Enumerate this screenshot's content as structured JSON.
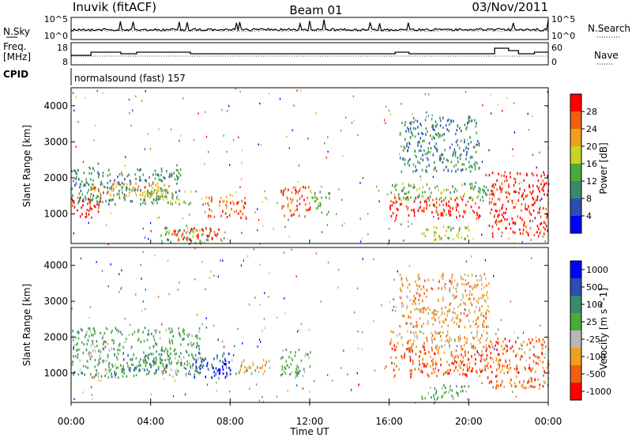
{
  "header": {
    "station": "Inuvik (fitACF)",
    "beam": "Beam 01",
    "date": "03/Nov/2011"
  },
  "noise_panel": {
    "left_label": "N.Sky",
    "right_label": "N.Search",
    "left_ticks": [
      "10^5",
      "10^0"
    ],
    "right_ticks": [
      "10^5",
      "10^0"
    ]
  },
  "freq_panel": {
    "left_label_1": "Freq.",
    "left_label_2": "[MHz]",
    "left_ticks": [
      "18",
      "8"
    ],
    "right_label": "Nave",
    "right_ticks": [
      "60",
      "0"
    ]
  },
  "cpid": {
    "label": "CPID",
    "value": "normalsound (fast) 157"
  },
  "colors": {
    "power_scale": [
      "#0000ff",
      "#2a4fb3",
      "#3a8a6a",
      "#4aab3a",
      "#c8d42a",
      "#f0a020",
      "#f06010",
      "#ff0000"
    ],
    "velocity_scale": [
      "#0000ff",
      "#2a4fb3",
      "#3a8a6a",
      "#4aab3a",
      "#b8b8b8",
      "#f0a020",
      "#f06010",
      "#ff0000"
    ]
  },
  "chart_data": [
    {
      "type": "heatmap",
      "panel": "power",
      "ylabel": "Slant Range [km]",
      "yticks": [
        "1000",
        "2000",
        "3000",
        "4000"
      ],
      "ylim": [
        180,
        4500
      ],
      "xlim": [
        0,
        24
      ],
      "colorbar_label": "Power [dB]",
      "colorbar_ticks": [
        "4",
        "8",
        "12",
        "16",
        "20",
        "24",
        "28"
      ],
      "regions": [
        {
          "t0": 0.0,
          "t1": 1.5,
          "r0": 900,
          "r1": 1500,
          "level": 7
        },
        {
          "t0": 0.0,
          "t1": 5.5,
          "r0": 1300,
          "r1": 2300,
          "level": 2
        },
        {
          "t0": 1.0,
          "t1": 5.0,
          "r0": 1500,
          "r1": 1900,
          "level": 5
        },
        {
          "t0": 3.5,
          "t1": 6.0,
          "r0": 1300,
          "r1": 1700,
          "level": 4
        },
        {
          "t0": 4.5,
          "t1": 7.0,
          "r0": 200,
          "r1": 700,
          "level": 3
        },
        {
          "t0": 5.0,
          "t1": 7.5,
          "r0": 300,
          "r1": 650,
          "level": 7
        },
        {
          "t0": 6.7,
          "t1": 8.8,
          "r0": 900,
          "r1": 1500,
          "level": 6
        },
        {
          "t0": 10.5,
          "t1": 12.0,
          "r0": 900,
          "r1": 1800,
          "level": 6
        },
        {
          "t0": 12.0,
          "t1": 13.0,
          "r0": 1000,
          "r1": 1700,
          "level": 3
        },
        {
          "t0": 16.0,
          "t1": 20.5,
          "r0": 900,
          "r1": 1500,
          "level": 7
        },
        {
          "t0": 16.0,
          "t1": 21.0,
          "r0": 1400,
          "r1": 1900,
          "level": 3
        },
        {
          "t0": 17.5,
          "t1": 20.0,
          "r0": 300,
          "r1": 700,
          "level": 4
        },
        {
          "t0": 21.0,
          "t1": 24.0,
          "r0": 400,
          "r1": 2200,
          "level": 7
        },
        {
          "t0": 16.5,
          "t1": 20.5,
          "r0": 2200,
          "r1": 3700,
          "level": 2
        }
      ]
    },
    {
      "type": "heatmap",
      "panel": "velocity",
      "ylabel": "Slant Range [km]",
      "yticks": [
        "1000",
        "2000",
        "3000",
        "4000"
      ],
      "ylim": [
        180,
        4500
      ],
      "xlim": [
        0,
        24
      ],
      "colorbar_label": "Velocity [m s^-1]",
      "colorbar_ticks": [
        "1000",
        "500",
        "100",
        "25",
        "-25",
        "-100",
        "-500",
        "-1000"
      ],
      "regions": [
        {
          "t0": 0.0,
          "t1": 6.5,
          "r0": 900,
          "r1": 2300,
          "level": 3
        },
        {
          "t0": 2.5,
          "t1": 5.0,
          "r0": 1000,
          "r1": 1600,
          "level": 2
        },
        {
          "t0": 6.0,
          "t1": 8.0,
          "r0": 900,
          "r1": 1600,
          "level": 1
        },
        {
          "t0": 7.0,
          "t1": 8.0,
          "r0": 1000,
          "r1": 1300,
          "level": 0
        },
        {
          "t0": 8.0,
          "t1": 10.0,
          "r0": 1000,
          "r1": 1400,
          "level": 4
        },
        {
          "t0": 10.5,
          "t1": 12.0,
          "r0": 900,
          "r1": 1700,
          "level": 3
        },
        {
          "t0": 16.0,
          "t1": 21.0,
          "r0": 900,
          "r1": 1800,
          "level": 6
        },
        {
          "t0": 16.0,
          "t1": 21.0,
          "r0": 1700,
          "r1": 2200,
          "level": 5
        },
        {
          "t0": 21.0,
          "t1": 24.0,
          "r0": 600,
          "r1": 2000,
          "level": 6
        },
        {
          "t0": 16.5,
          "t1": 21.0,
          "r0": 2300,
          "r1": 3800,
          "level": 5
        },
        {
          "t0": 17.5,
          "t1": 20.0,
          "r0": 300,
          "r1": 700,
          "level": 3
        }
      ]
    }
  ],
  "time_axis": {
    "label": "Time UT",
    "ticks": [
      "00:00",
      "04:00",
      "08:00",
      "12:00",
      "16:00",
      "20:00",
      "00:00"
    ]
  }
}
